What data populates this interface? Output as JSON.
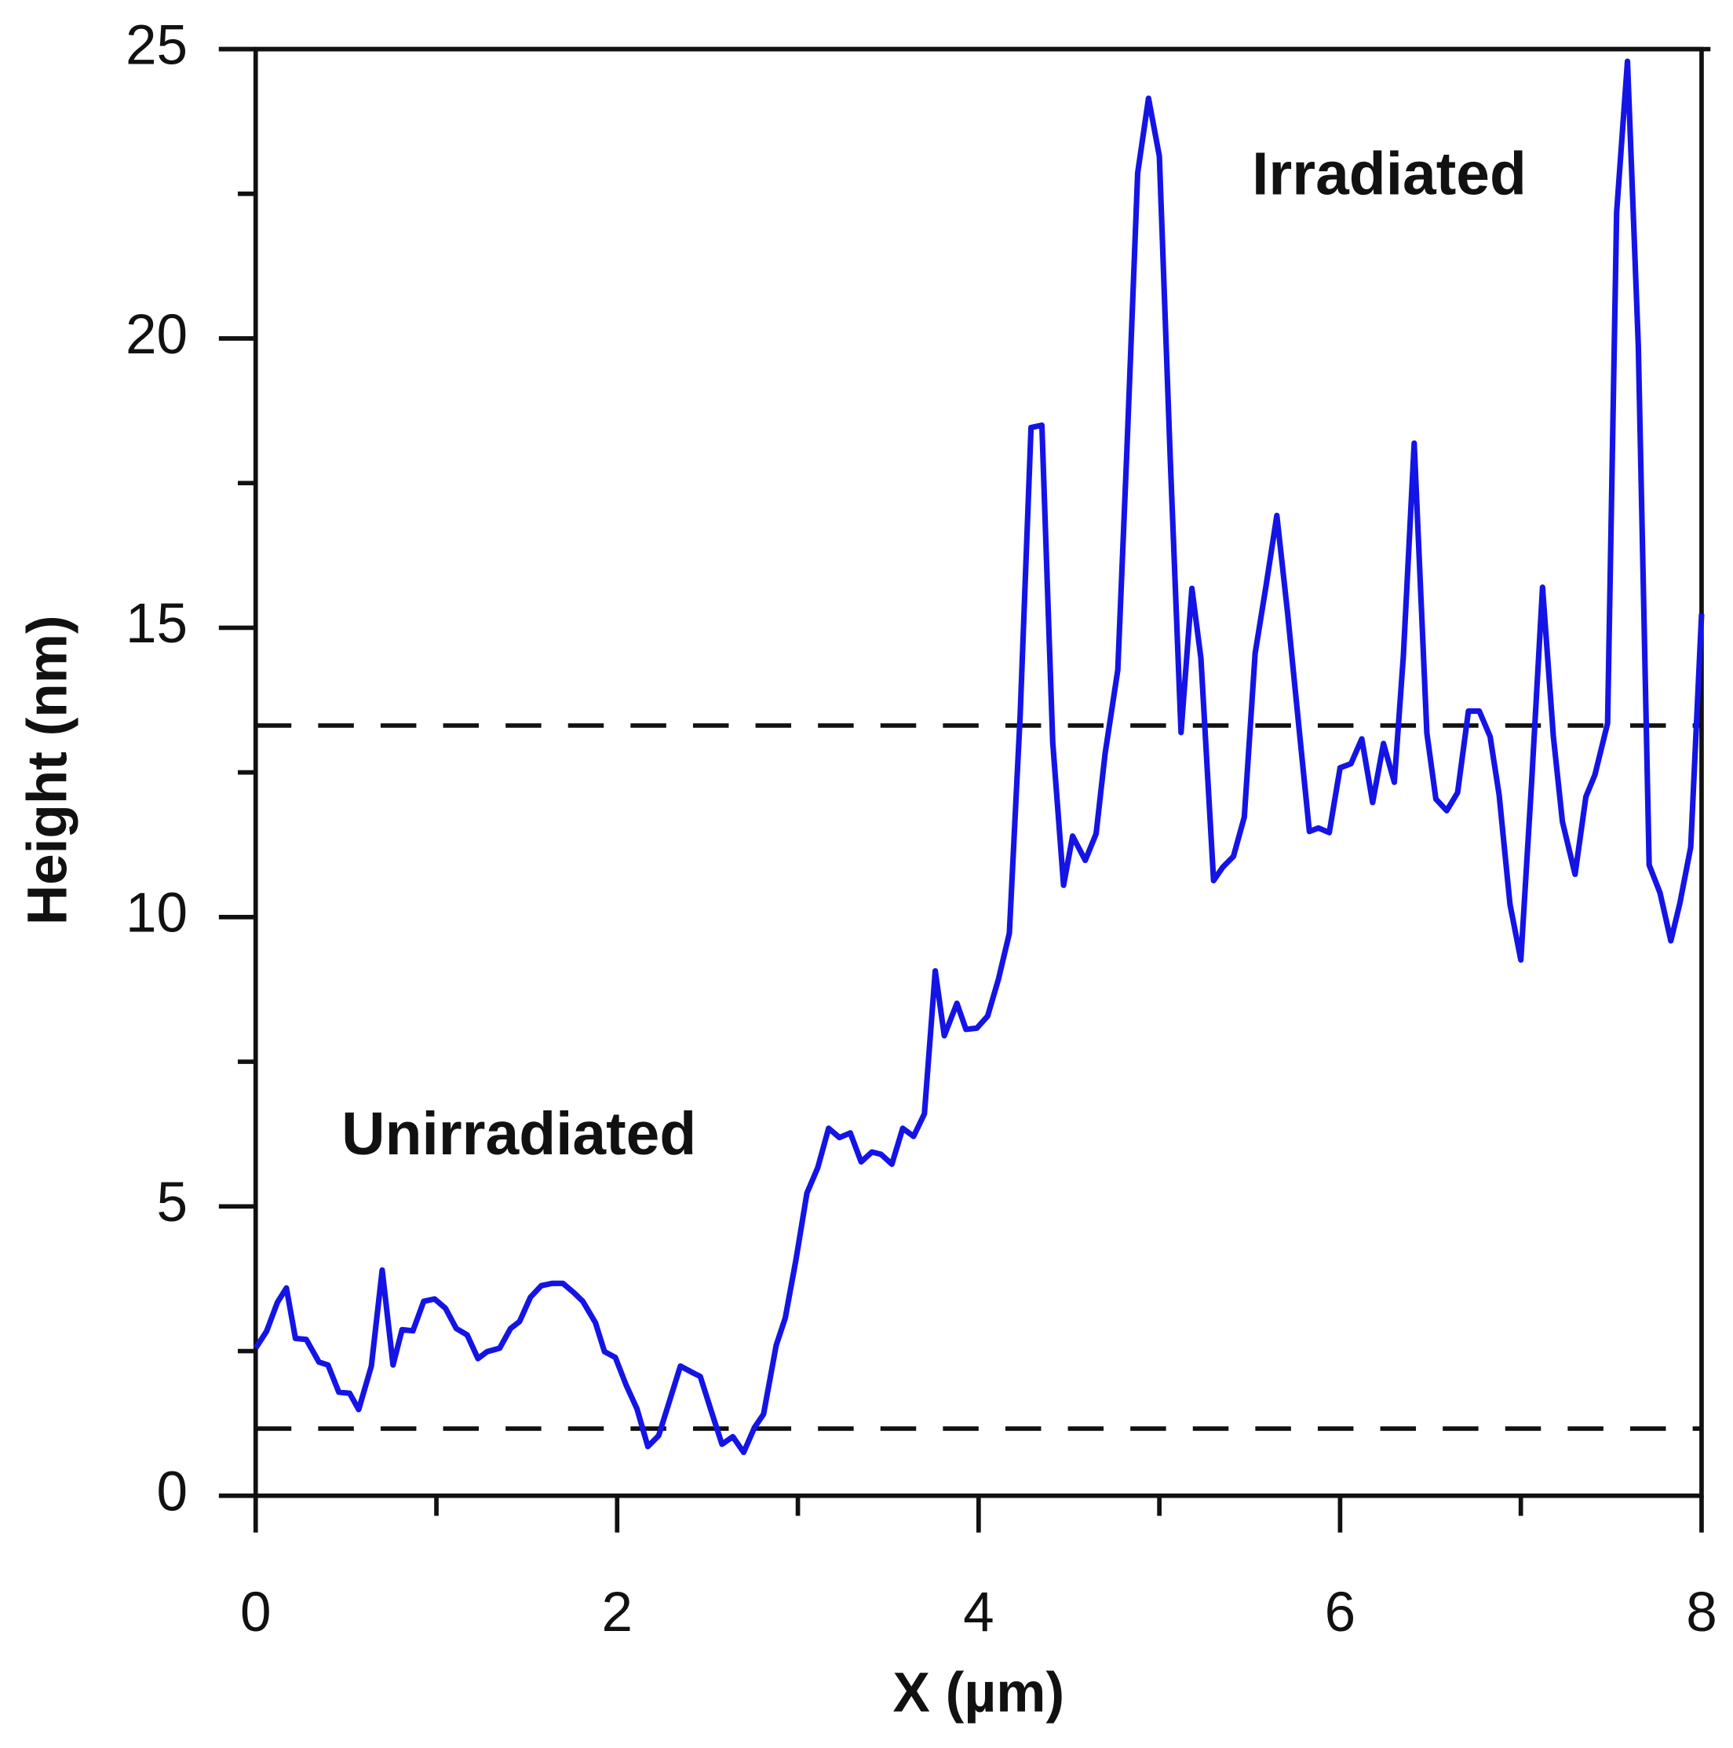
{
  "chart_data": {
    "type": "line",
    "xlabel": "X (µm)",
    "ylabel": "Height (nm)",
    "xlim": [
      0,
      8
    ],
    "ylim": [
      0,
      25
    ],
    "xticks": [
      0,
      2,
      4,
      6,
      8
    ],
    "x_minor_ticks": [
      1,
      3,
      5,
      7
    ],
    "yticks": [
      0,
      5,
      10,
      15,
      20,
      25
    ],
    "y_minor_ticks": [
      2.5,
      7.5,
      12.5,
      17.5,
      22.5
    ],
    "grid": false,
    "reference_lines": {
      "y": [
        1.16,
        13.31
      ],
      "style": "dashed",
      "color": "#111111"
    },
    "annotations": [
      "Irradiated",
      "Unirradiated"
    ],
    "x": [
      0,
      0.06,
      0.12,
      0.17,
      0.22,
      0.28,
      0.35,
      0.4,
      0.46,
      0.52,
      0.57,
      0.64,
      0.7,
      0.76,
      0.81,
      0.87,
      0.93,
      0.99,
      1.05,
      1.11,
      1.17,
      1.23,
      1.28,
      1.35,
      1.41,
      1.46,
      1.52,
      1.58,
      1.64,
      1.7,
      1.76,
      1.81,
      1.88,
      1.93,
      1.99,
      2.05,
      2.11,
      2.17,
      2.23,
      2.29,
      2.35,
      2.41,
      2.46,
      2.52,
      2.58,
      2.64,
      2.7,
      2.76,
      2.81,
      2.88,
      2.93,
      2.99,
      3.05,
      3.11,
      3.17,
      3.23,
      3.29,
      3.35,
      3.41,
      3.46,
      3.52,
      3.58,
      3.64,
      3.7,
      3.76,
      3.81,
      3.88,
      3.93,
      3.99,
      4.05,
      4.11,
      4.17,
      4.23,
      4.29,
      4.35,
      4.41,
      4.47,
      4.52,
      4.59,
      4.65,
      4.7,
      4.77,
      4.82,
      4.88,
      4.94,
      5.0,
      5.06,
      5.12,
      5.18,
      5.23,
      5.3,
      5.35,
      5.41,
      5.47,
      5.53,
      5.59,
      5.65,
      5.71,
      5.77,
      5.83,
      5.88,
      5.94,
      6.0,
      6.06,
      6.12,
      6.18,
      6.24,
      6.3,
      6.35,
      6.41,
      6.48,
      6.53,
      6.59,
      6.65,
      6.71,
      6.77,
      6.83,
      6.88,
      6.94,
      7.0,
      7.06,
      7.12,
      7.18,
      7.23,
      7.3,
      7.36,
      7.41,
      7.48,
      7.53,
      7.59,
      7.65,
      7.71,
      7.77,
      7.83,
      7.88,
      7.94,
      8.0
    ],
    "series": [
      {
        "color": "#1414e6",
        "values": [
          2.55,
          2.84,
          3.34,
          3.59,
          2.72,
          2.7,
          2.31,
          2.26,
          1.79,
          1.77,
          1.49,
          2.24,
          3.9,
          2.26,
          2.87,
          2.85,
          3.36,
          3.4,
          3.24,
          2.89,
          2.78,
          2.37,
          2.49,
          2.55,
          2.89,
          3.01,
          3.43,
          3.63,
          3.67,
          3.67,
          3.51,
          3.36,
          2.99,
          2.49,
          2.39,
          1.91,
          1.5,
          0.85,
          1.04,
          1.64,
          2.24,
          2.14,
          2.06,
          1.47,
          0.89,
          1.02,
          0.75,
          1.18,
          1.41,
          2.6,
          3.07,
          4.09,
          5.23,
          5.67,
          6.35,
          6.19,
          6.27,
          5.77,
          5.94,
          5.9,
          5.73,
          6.35,
          6.21,
          6.6,
          9.07,
          7.95,
          8.51,
          8.06,
          8.08,
          8.29,
          8.93,
          9.72,
          13.5,
          18.46,
          18.5,
          13.02,
          10.55,
          11.4,
          10.98,
          11.44,
          12.83,
          14.27,
          18.04,
          22.86,
          24.15,
          23.15,
          17.94,
          13.19,
          15.68,
          14.47,
          10.63,
          10.86,
          11.05,
          11.73,
          14.56,
          15.72,
          16.94,
          15.24,
          13.35,
          11.48,
          11.54,
          11.46,
          12.58,
          12.65,
          13.08,
          11.98,
          13.0,
          12.33,
          14.51,
          18.19,
          13.18,
          12.04,
          11.84,
          12.15,
          13.56,
          13.56,
          13.12,
          12.11,
          10.22,
          9.26,
          12.35,
          15.7,
          13.12,
          11.65,
          10.74,
          12.08,
          12.46,
          13.35,
          22.18,
          24.79,
          19.87,
          10.9,
          10.42,
          9.59,
          10.24,
          11.21,
          15.24
        ]
      }
    ]
  }
}
